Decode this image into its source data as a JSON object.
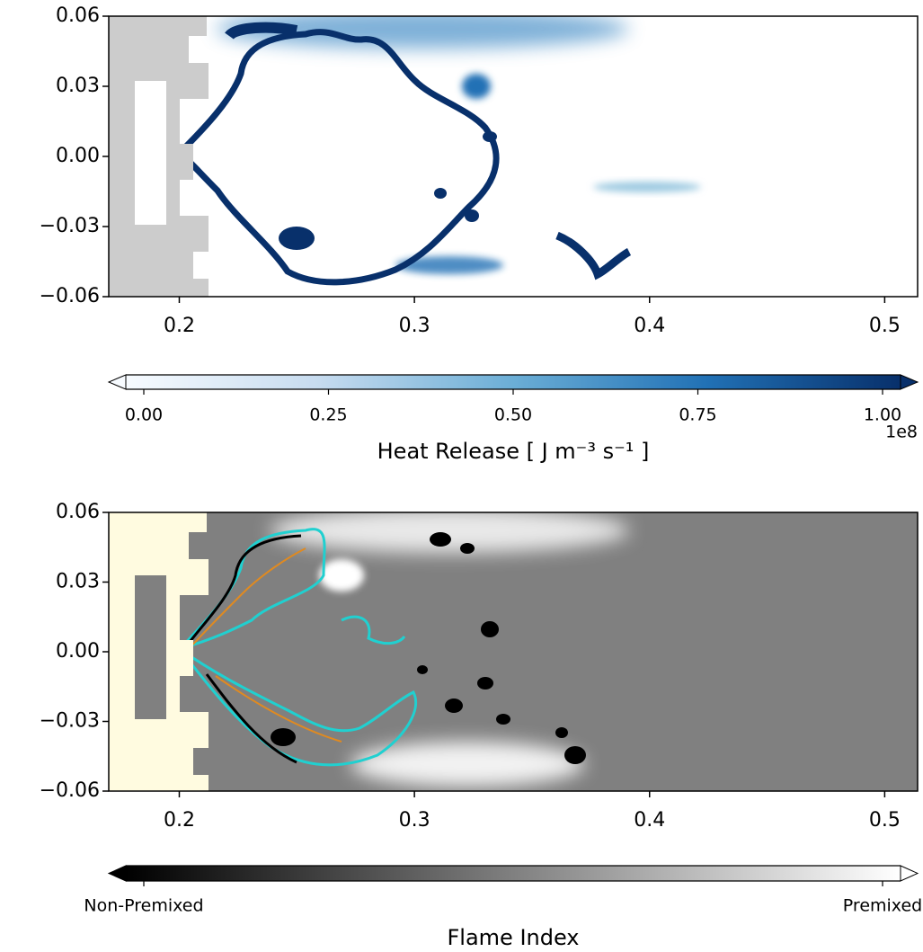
{
  "chart_data": [
    {
      "type": "field",
      "xlim": [
        0.17,
        0.514
      ],
      "ylim": [
        -0.06,
        0.06
      ],
      "xticks": [
        0.2,
        0.3,
        0.4,
        0.5
      ],
      "yticks": [
        {
          "value": -0.06,
          "label": "−0.06"
        },
        {
          "value": -0.03,
          "label": "−0.03"
        },
        {
          "value": 0,
          "label": "0.00"
        },
        0.03,
        0.06
      ],
      "colorbar": {
        "label": "Heat Release [ J m⁻³ s⁻¹ ]",
        "colormap": "Blues",
        "offset_text": "1e8",
        "lim": [
          0,
          1
        ],
        "ticks": [
          {
            "value": 0,
            "label": "0.00"
          },
          0.25,
          {
            "value": 0.5,
            "label": "0.50"
          },
          0.75,
          {
            "value": 1,
            "label": "1.00"
          }
        ]
      }
    },
    {
      "type": "field",
      "xlim": [
        0.17,
        0.514
      ],
      "ylim": [
        -0.06,
        0.06
      ],
      "xticks": [
        0.2,
        0.3,
        0.4,
        0.5
      ],
      "yticks": [
        {
          "value": -0.06,
          "label": "−0.06"
        },
        {
          "value": -0.03,
          "label": "−0.03"
        },
        {
          "value": 0,
          "label": "0.00"
        },
        0.03,
        0.06
      ],
      "colorbar": {
        "label": "Flame Index",
        "colormap": "Greys",
        "lim": [
          -1,
          1
        ],
        "ticks": [
          {
            "value": -1,
            "label": "Non-Premixed"
          },
          {
            "value": 1,
            "label": "Premixed"
          }
        ]
      }
    }
  ]
}
